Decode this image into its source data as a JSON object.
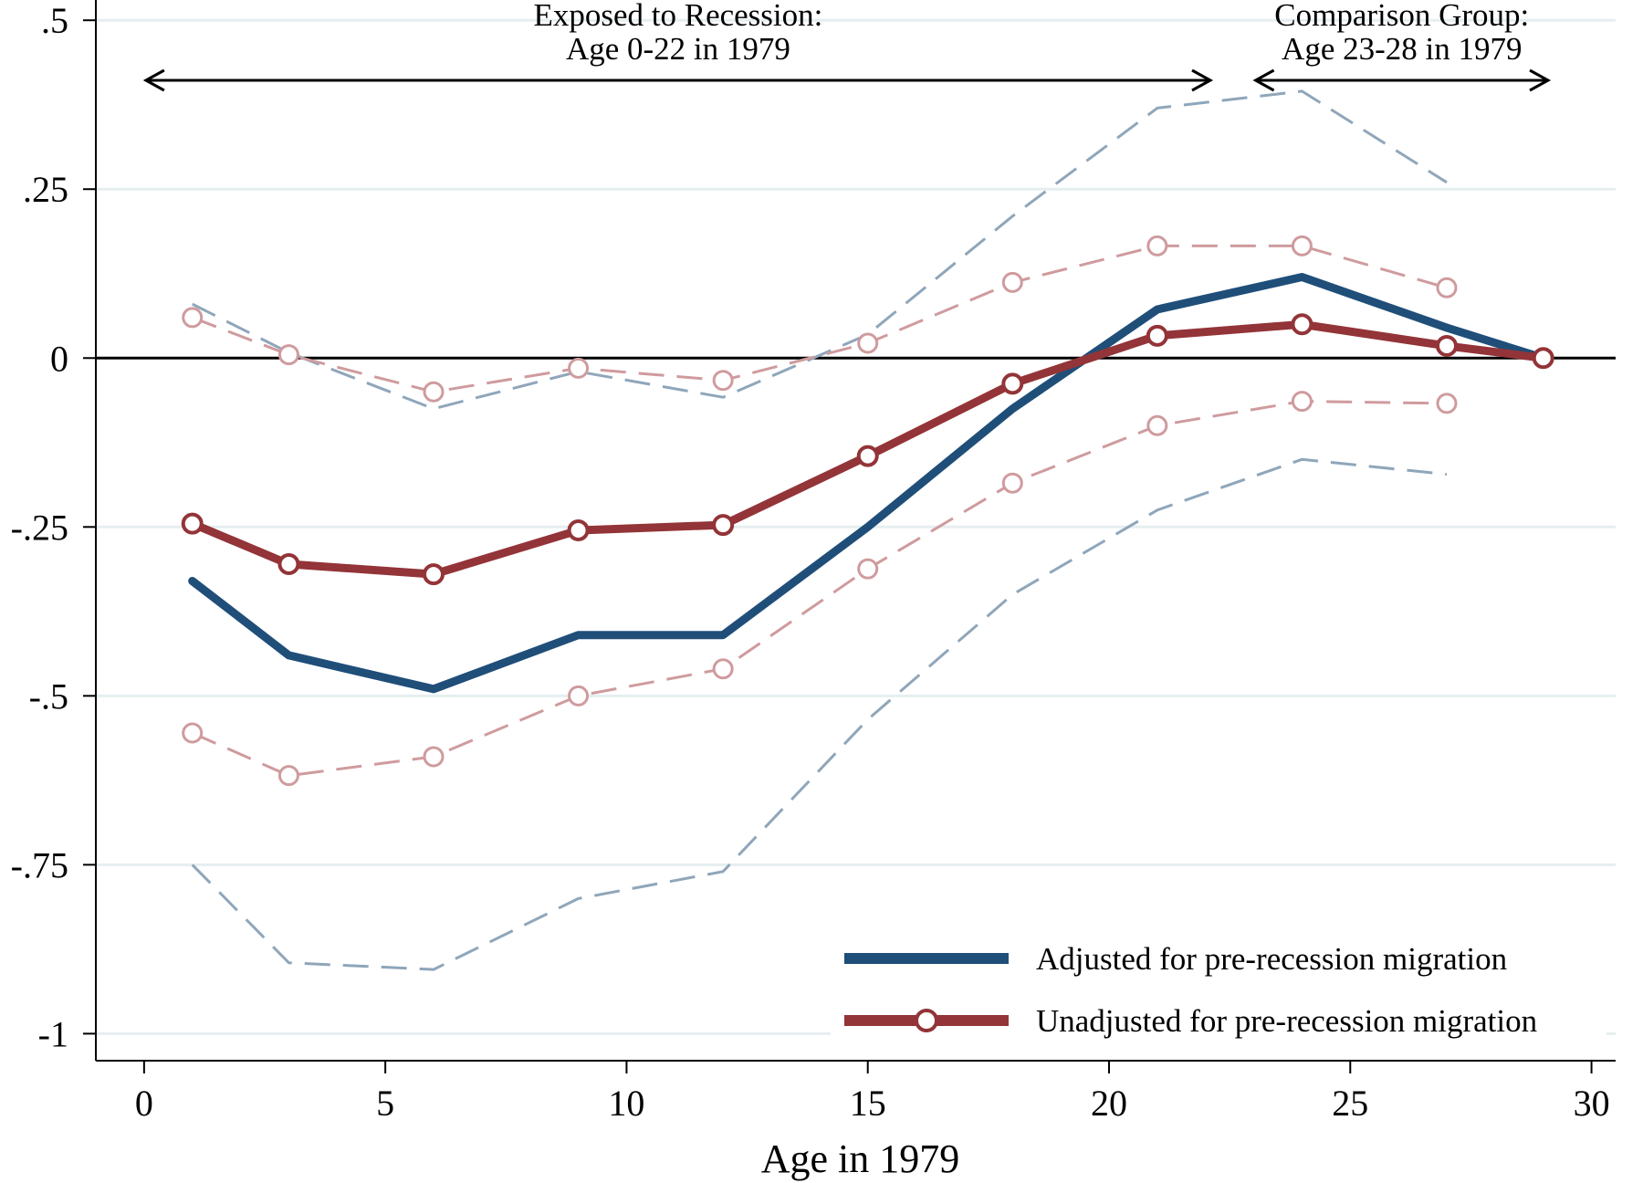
{
  "chart_data": {
    "type": "line",
    "title": "",
    "xlabel": "Age in 1979",
    "ylabel": "",
    "xlim": [
      -1,
      30.5
    ],
    "ylim": [
      -1.04,
      0.53
    ],
    "xticks": [
      0,
      5,
      10,
      15,
      20,
      25,
      30
    ],
    "xtick_labels": [
      "0",
      "5",
      "10",
      "15",
      "20",
      "25",
      "30"
    ],
    "yticks": [
      0.5,
      0.25,
      0,
      -0.25,
      -0.5,
      -0.75,
      -1
    ],
    "ytick_labels": [
      ".5",
      ".25",
      "0",
      "-.25",
      "-.5",
      "-.75",
      "-1"
    ],
    "grid": true,
    "reference_line_y": 0,
    "series": [
      {
        "name": "Adjusted for pre-recession migration",
        "role": "estimate",
        "color": "#1f4e79",
        "markers": false,
        "x": [
          1,
          3,
          6,
          9,
          12,
          15,
          18,
          21,
          24,
          27,
          29
        ],
        "values": [
          -0.33,
          -0.44,
          -0.49,
          -0.41,
          -0.41,
          -0.25,
          -0.075,
          0.072,
          0.12,
          0.045,
          0.0
        ]
      },
      {
        "name": "Unadjusted for pre-recession migration",
        "role": "estimate",
        "color": "#933438",
        "markers": true,
        "x": [
          1,
          3,
          6,
          9,
          12,
          15,
          18,
          21,
          24,
          27,
          29
        ],
        "values": [
          -0.245,
          -0.305,
          -0.32,
          -0.255,
          -0.247,
          -0.145,
          -0.038,
          0.033,
          0.05,
          0.018,
          0.0
        ]
      },
      {
        "name": "Adjusted upper 95% CI",
        "role": "ci",
        "color": "#8fa6ba",
        "markers": false,
        "x": [
          1,
          3,
          6,
          9,
          12,
          15,
          18,
          21,
          24,
          27
        ],
        "values": [
          0.08,
          0.008,
          -0.075,
          -0.02,
          -0.058,
          0.035,
          0.21,
          0.37,
          0.395,
          0.26
        ]
      },
      {
        "name": "Adjusted lower 95% CI",
        "role": "ci",
        "color": "#8fa6ba",
        "markers": false,
        "x": [
          1,
          3,
          6,
          9,
          12,
          15,
          18,
          21,
          24,
          27
        ],
        "values": [
          -0.75,
          -0.895,
          -0.905,
          -0.8,
          -0.76,
          -0.535,
          -0.35,
          -0.225,
          -0.15,
          -0.172
        ]
      },
      {
        "name": "Unadjusted upper 95% CI",
        "role": "ci",
        "color": "#cf9b9e",
        "markers": true,
        "x": [
          1,
          3,
          6,
          9,
          12,
          15,
          18,
          21,
          24,
          27
        ],
        "values": [
          0.06,
          0.005,
          -0.05,
          -0.015,
          -0.033,
          0.022,
          0.112,
          0.166,
          0.166,
          0.104
        ]
      },
      {
        "name": "Unadjusted lower 95% CI",
        "role": "ci",
        "color": "#cf9b9e",
        "markers": true,
        "x": [
          1,
          3,
          6,
          9,
          12,
          15,
          18,
          21,
          24,
          27
        ],
        "values": [
          -0.555,
          -0.618,
          -0.59,
          -0.5,
          -0.46,
          -0.312,
          -0.185,
          -0.1,
          -0.064,
          -0.067
        ]
      }
    ],
    "annotations": [
      {
        "text_lines": [
          "Exposed to Recession:",
          "Age 0-22 in 1979"
        ],
        "x_range": [
          0,
          22.1
        ]
      },
      {
        "text_lines": [
          "Comparison Group:",
          "Age 23-28 in 1979"
        ],
        "x_range": [
          23,
          29.1
        ]
      }
    ],
    "legend": {
      "position": "bottom-right",
      "entries": [
        "Adjusted for pre-recession migration",
        "Unadjusted for pre-recession migration"
      ]
    }
  }
}
